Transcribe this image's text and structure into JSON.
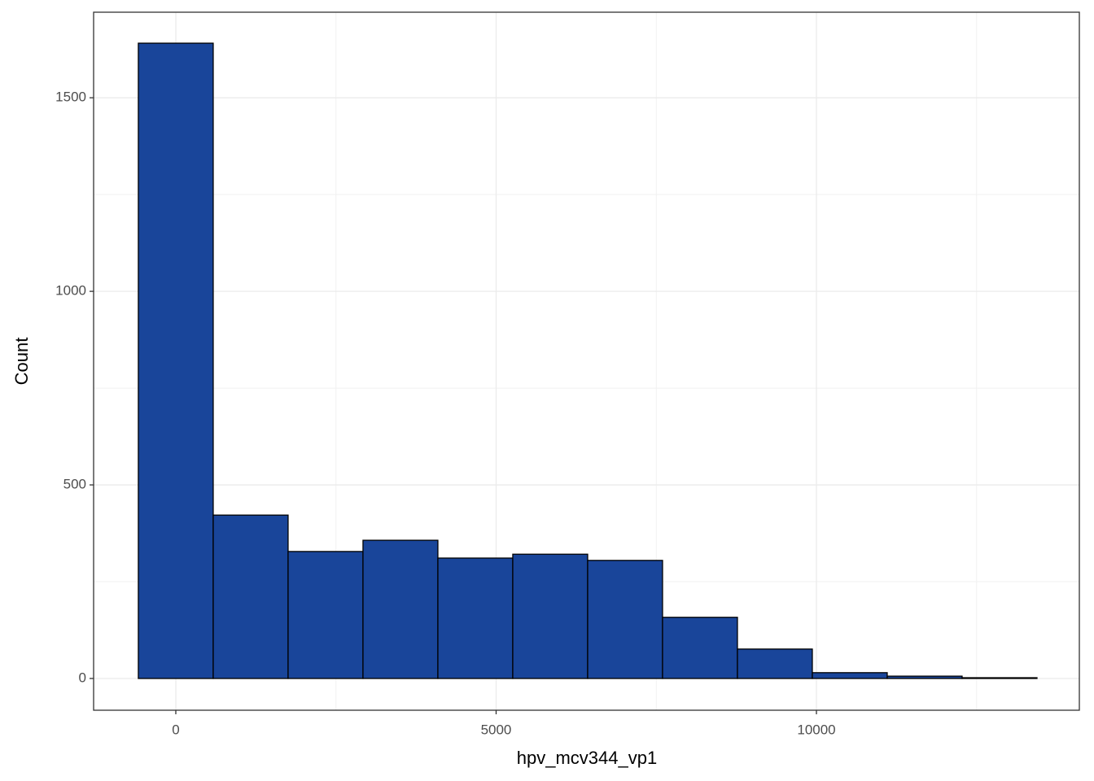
{
  "chart_data": {
    "type": "histogram",
    "x_label": "hpv_mcv344_vp1",
    "y_label": "Count",
    "bins": [
      -585,
      584,
      1753,
      2922,
      4091,
      5260,
      6429,
      7598,
      8767,
      9936,
      11105,
      12274,
      13443
    ],
    "counts": [
      1641,
      422,
      328,
      357,
      311,
      321,
      305,
      158,
      76,
      15,
      6,
      2
    ],
    "color": "#19459a",
    "edge_color": "#000000",
    "xlim": [
      -1283,
      14104
    ],
    "xticks": [
      0,
      5000,
      10000
    ],
    "ylim": [
      -82,
      1721
    ],
    "yticks": [
      0,
      500,
      1000,
      1500
    ],
    "grid": true
  }
}
